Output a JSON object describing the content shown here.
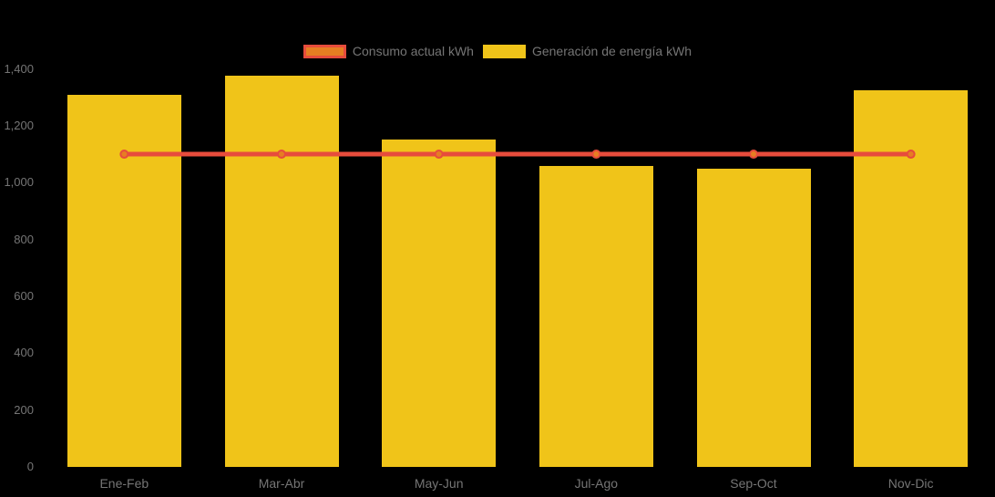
{
  "legend": {
    "items": [
      {
        "label": "Consumo actual kWh"
      },
      {
        "label": "Generación de energía kWh"
      }
    ]
  },
  "chart_data": {
    "type": "bar",
    "subtype": "bar-with-line-overlay",
    "title": "",
    "xlabel": "",
    "ylabel": "",
    "categories": [
      "Ene-Feb",
      "Mar-Abr",
      "May-Jun",
      "Jul-Ago",
      "Sep-Oct",
      "Nov-Dic"
    ],
    "series": [
      {
        "name": "Consumo actual kWh",
        "type": "line",
        "color": "#E74C3C",
        "marker_fill": "#E67E22",
        "values": [
          1100,
          1100,
          1100,
          1100,
          1100,
          1100
        ]
      },
      {
        "name": "Generación de energía kWh",
        "type": "bar",
        "color": "#F0C419",
        "values": [
          1310,
          1375,
          1150,
          1060,
          1050,
          1325
        ]
      }
    ],
    "ylim": [
      0,
      1400
    ],
    "yticks": [
      0,
      200,
      400,
      600,
      800,
      1000,
      1200,
      1400
    ],
    "ytick_labels": [
      "0",
      "200",
      "400",
      "600",
      "800",
      "1,000",
      "1,200",
      "1,400"
    ],
    "grid": false,
    "legend_position": "top-center",
    "background_color": "#000000",
    "text_color": "#757575"
  }
}
